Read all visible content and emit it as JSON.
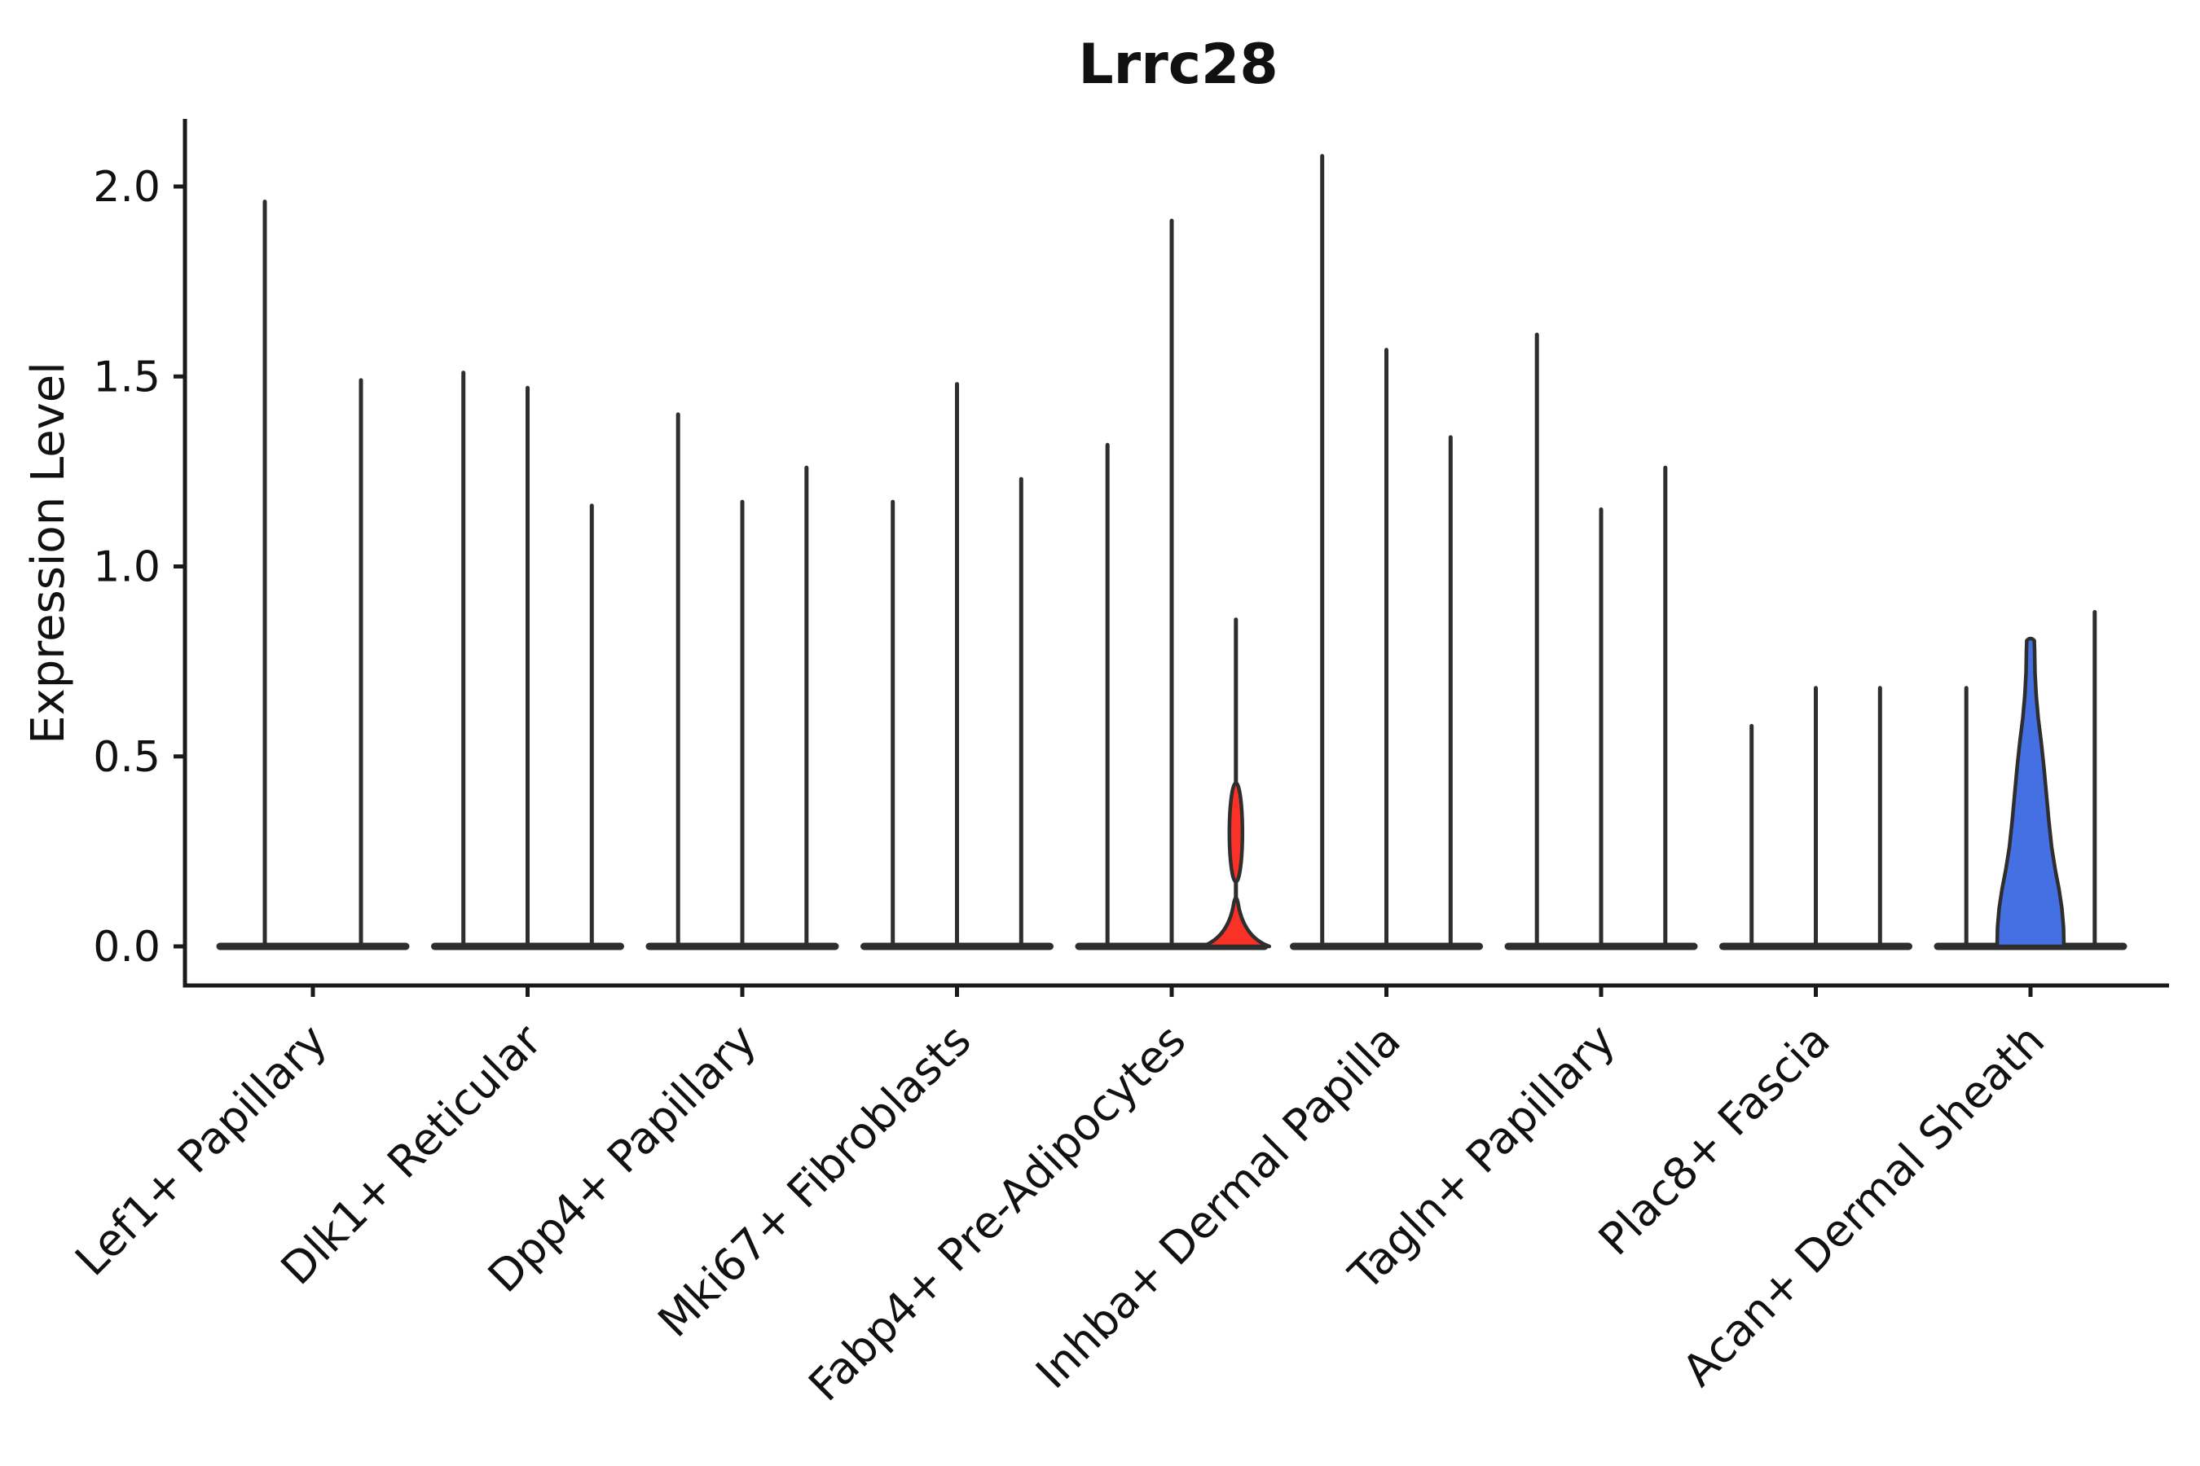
{
  "chart_data": {
    "type": "violin",
    "title": "Lrrc28",
    "xlabel": "",
    "ylabel": "Expression Level",
    "ytick_values": [
      0.0,
      0.5,
      1.0,
      1.5,
      2.0
    ],
    "ytick_labels": [
      "0.0",
      "0.5",
      "1.0",
      "1.5",
      "2.0"
    ],
    "ylim": [
      -0.1,
      2.17
    ],
    "grid": "off",
    "legend": "none",
    "description": "Stacked violin plot of Lrrc28 expression; most violins collapse to a flat base at 0 with a thin spike to the maximum expressing cell. One violin is filled red (Fabp4+ Pre-Adipocytes group) and one is filled blue (Acan+ Dermal Sheath group).",
    "groups": [
      {
        "label": "Lef1+ Papillary",
        "violin_max": [
          1.96,
          1.49
        ],
        "styles": [
          "spike",
          "spike"
        ]
      },
      {
        "label": "Dlk1+ Reticular",
        "violin_max": [
          1.51,
          1.47,
          1.16
        ],
        "styles": [
          "spike",
          "spike",
          "spike"
        ]
      },
      {
        "label": "Dpp4+ Papillary",
        "violin_max": [
          1.4,
          1.17,
          1.26
        ],
        "styles": [
          "spike",
          "spike",
          "spike"
        ]
      },
      {
        "label": "Mki67+ Fibroblasts",
        "violin_max": [
          1.17,
          1.48,
          1.23
        ],
        "styles": [
          "spike",
          "spike",
          "spike"
        ]
      },
      {
        "label": "Fabp4+ Pre-Adipocytes",
        "violin_max": [
          1.32,
          1.91,
          0.86
        ],
        "styles": [
          "spike",
          "spike",
          "red-body"
        ]
      },
      {
        "label": "Inhba+ Dermal Papilla",
        "violin_max": [
          2.08,
          1.57,
          1.34
        ],
        "styles": [
          "spike",
          "spike",
          "spike"
        ]
      },
      {
        "label": "Tagln+ Papillary",
        "violin_max": [
          1.61,
          1.15,
          1.26
        ],
        "styles": [
          "spike",
          "spike",
          "spike"
        ]
      },
      {
        "label": "Plac8+ Fascia",
        "violin_max": [
          0.58,
          0.68,
          0.68
        ],
        "styles": [
          "spike",
          "spike",
          "spike"
        ]
      },
      {
        "label": "Acan+ Dermal Sheath",
        "violin_max": [
          0.68,
          0.82,
          0.88
        ],
        "styles": [
          "spike",
          "blue-body",
          "spike"
        ]
      }
    ],
    "red_body": {
      "group": "Fabp4+ Pre-Adipocytes",
      "max": 0.86,
      "base_peak": 0.14,
      "base_halfwidth": 41,
      "bulge_center": 0.3,
      "bulge_halfheight": 0.13
    },
    "blue_body": {
      "group": "Acan+ Dermal Sheath",
      "max": 0.82,
      "profile": [
        [
          0.0,
          41
        ],
        [
          0.05,
          40.5
        ],
        [
          0.1,
          38.5
        ],
        [
          0.15,
          35
        ],
        [
          0.2,
          30.5
        ],
        [
          0.26,
          26
        ],
        [
          0.33,
          22.5
        ],
        [
          0.4,
          19.5
        ],
        [
          0.47,
          16.5
        ],
        [
          0.54,
          13
        ],
        [
          0.6,
          9.5
        ],
        [
          0.66,
          7
        ],
        [
          0.72,
          5.5
        ],
        [
          0.78,
          5.0
        ],
        [
          0.805,
          4.6
        ]
      ]
    },
    "colors": {
      "background": "#ffffff",
      "violin_outline": "#2e2e2e",
      "spine": "#1a1a1a",
      "red_fill": "#f93127",
      "blue_fill": "#4470e4",
      "text": "#111111"
    }
  }
}
